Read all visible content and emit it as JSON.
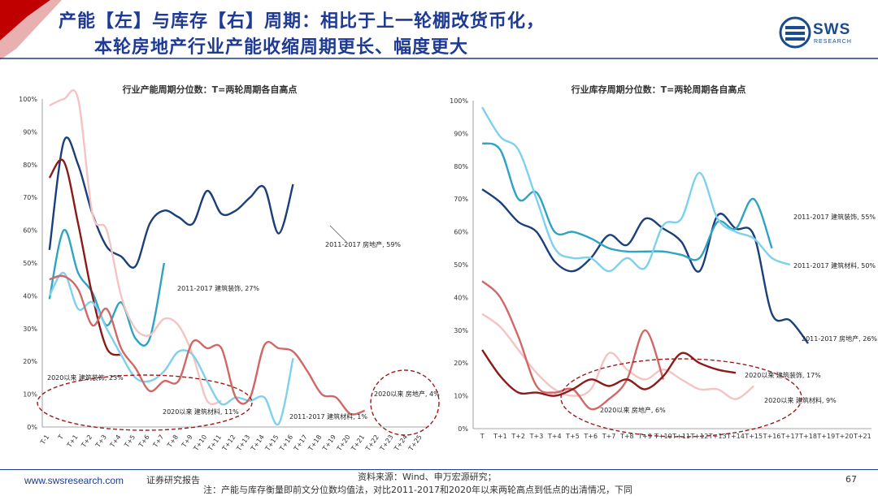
{
  "header": {
    "title_line1": "产能【左】与库存【右】周期：相比于上一轮棚改货币化，",
    "title_line2": "本轮房地产行业产能收缩周期更长、幅度更大",
    "logo_text": "SWS",
    "logo_sub": "RESEARCH",
    "accent_color": "#c00000",
    "brand_color": "#1f3a93"
  },
  "footer": {
    "url": "www.swsresearch.com",
    "label": "证券研究报告",
    "source": "资料来源：Wind、申万宏源研究；",
    "note": "注：产能与库存衡量即前文分位数均值法，对比2011-2017和2020年以来两轮高点到低点的出清情况，下同",
    "page": "67"
  },
  "chart_data": [
    {
      "type": "line",
      "title": "行业产能周期分位数：T=两轮周期各自高点",
      "x": [
        "T-1",
        "T",
        "T+1",
        "T+2",
        "T+3",
        "T+4",
        "T+5",
        "T+6",
        "T+7",
        "T+8",
        "T+9",
        "T+10",
        "T+11",
        "T+12",
        "T+13",
        "T+14",
        "T+15",
        "T+16",
        "T+17",
        "T+18",
        "T+19",
        "T+20",
        "T+21",
        "T+22",
        "T+23",
        "T+24",
        "T+25"
      ],
      "ylim": [
        0,
        100
      ],
      "yticks": [
        "0%",
        "10%",
        "20%",
        "30%",
        "40%",
        "50%",
        "60%",
        "70%",
        "80%",
        "90%",
        "100%"
      ],
      "series": [
        {
          "color": "#1b3f7a",
          "values": [
            54,
            87,
            80,
            65,
            55,
            52,
            49,
            62,
            66,
            64,
            62,
            72,
            65,
            66,
            70,
            73,
            59,
            74,
            null,
            null,
            null,
            null,
            null,
            null,
            null,
            null,
            null
          ]
        },
        {
          "color": "#2ea3c2",
          "values": [
            39,
            60,
            47,
            41,
            31,
            38,
            27,
            27,
            50,
            null,
            null,
            null,
            null,
            null,
            null,
            null,
            null,
            null,
            null,
            null,
            null,
            null,
            null,
            null,
            null,
            null,
            null
          ]
        },
        {
          "color": "#f4c4c4",
          "values": [
            98,
            100,
            100,
            65,
            60,
            40,
            30,
            28,
            33,
            31,
            22,
            8,
            8,
            null,
            null,
            null,
            null,
            null,
            null,
            null,
            null,
            null,
            null,
            null,
            null,
            null,
            null
          ]
        },
        {
          "color": "#8b1a1a",
          "values": [
            76,
            81,
            62,
            40,
            24,
            22,
            null,
            null,
            null,
            null,
            null,
            null,
            null,
            null,
            null,
            null,
            null,
            null,
            null,
            null,
            null,
            null,
            null,
            null,
            null,
            null,
            null
          ]
        },
        {
          "color": "#7fd0ee",
          "values": [
            40,
            47,
            36,
            38,
            30,
            22,
            15,
            14,
            17,
            23,
            22,
            14,
            7,
            9,
            8,
            9,
            1,
            21,
            null,
            null,
            null,
            null,
            null,
            null,
            null,
            null,
            null
          ]
        },
        {
          "color": "#d06868",
          "values": [
            45,
            46,
            42,
            31,
            36,
            24,
            18,
            11,
            14,
            14,
            26,
            24,
            24,
            9,
            9,
            25,
            24,
            23,
            17,
            10,
            9,
            4,
            5,
            null,
            null,
            null,
            null
          ]
        }
      ],
      "annotations": [
        {
          "text": "2011-2017 房地产, 59%"
        },
        {
          "text": "2011-2017 建筑装饰, 27%"
        },
        {
          "text": "2020以来 建筑装饰, 23%"
        },
        {
          "text": "2020以来 建筑材料, 11%"
        },
        {
          "text": "2011-2017 建筑材料, 1%"
        },
        {
          "text": "2020以来 房地产, 4%"
        }
      ]
    },
    {
      "type": "line",
      "title": "行业库存周期分位数：T=两轮周期各自高点",
      "x": [
        "T",
        "T+1",
        "T+2",
        "T+3",
        "T+4",
        "T+5",
        "T+6",
        "T+7",
        "T+8",
        "T+9",
        "T+10",
        "T+11",
        "T+12",
        "T+13",
        "T+14",
        "T+15",
        "T+16",
        "T+17",
        "T+18",
        "T+19",
        "T+20",
        "T+21"
      ],
      "ylim": [
        0,
        100
      ],
      "yticks": [
        "0%",
        "10%",
        "20%",
        "30%",
        "40%",
        "50%",
        "60%",
        "70%",
        "80%",
        "90%",
        "100%"
      ],
      "series": [
        {
          "color": "#1b3f7a",
          "values": [
            73,
            69,
            63,
            60,
            51,
            48,
            52,
            59,
            56,
            64,
            61,
            57,
            48,
            65,
            61,
            59,
            35,
            33,
            26,
            null,
            null,
            null
          ]
        },
        {
          "color": "#2ea3c2",
          "values": [
            87,
            85,
            70,
            72,
            60,
            60,
            58,
            55,
            54,
            54,
            54,
            53,
            52,
            63,
            61,
            70,
            55,
            null,
            null,
            null,
            null,
            null
          ]
        },
        {
          "color": "#7fd0ee",
          "values": [
            98,
            89,
            85,
            70,
            55,
            52,
            52,
            48,
            52,
            49,
            62,
            64,
            78,
            64,
            60,
            58,
            52,
            50,
            null,
            null,
            null,
            null
          ]
        },
        {
          "color": "#f4c4c4",
          "values": [
            35,
            31,
            24,
            17,
            12,
            10,
            12,
            23,
            18,
            15,
            18,
            15,
            12,
            12,
            9,
            13,
            null,
            null,
            null,
            null,
            null,
            null
          ]
        },
        {
          "color": "#d06868",
          "values": [
            45,
            40,
            28,
            13,
            11,
            12,
            6,
            9,
            15,
            30,
            15,
            null,
            null,
            null,
            null,
            null,
            null,
            null,
            null,
            null,
            null,
            null
          ]
        },
        {
          "color": "#8b1a1a",
          "values": [
            24,
            16,
            11,
            11,
            10,
            12,
            15,
            13,
            15,
            12,
            16,
            23,
            20,
            18,
            17,
            null,
            null,
            null,
            null,
            null,
            null,
            null
          ]
        }
      ],
      "annotations": [
        {
          "text": "2011-2017 建筑装饰, 55%"
        },
        {
          "text": "2011-2017 建筑材料, 50%"
        },
        {
          "text": "2011-2017 房地产, 26%"
        },
        {
          "text": "2020以来 建筑装饰, 17%"
        },
        {
          "text": "2020以来 建筑材料, 9%"
        },
        {
          "text": "2020以来 房地产, 6%"
        }
      ]
    }
  ]
}
